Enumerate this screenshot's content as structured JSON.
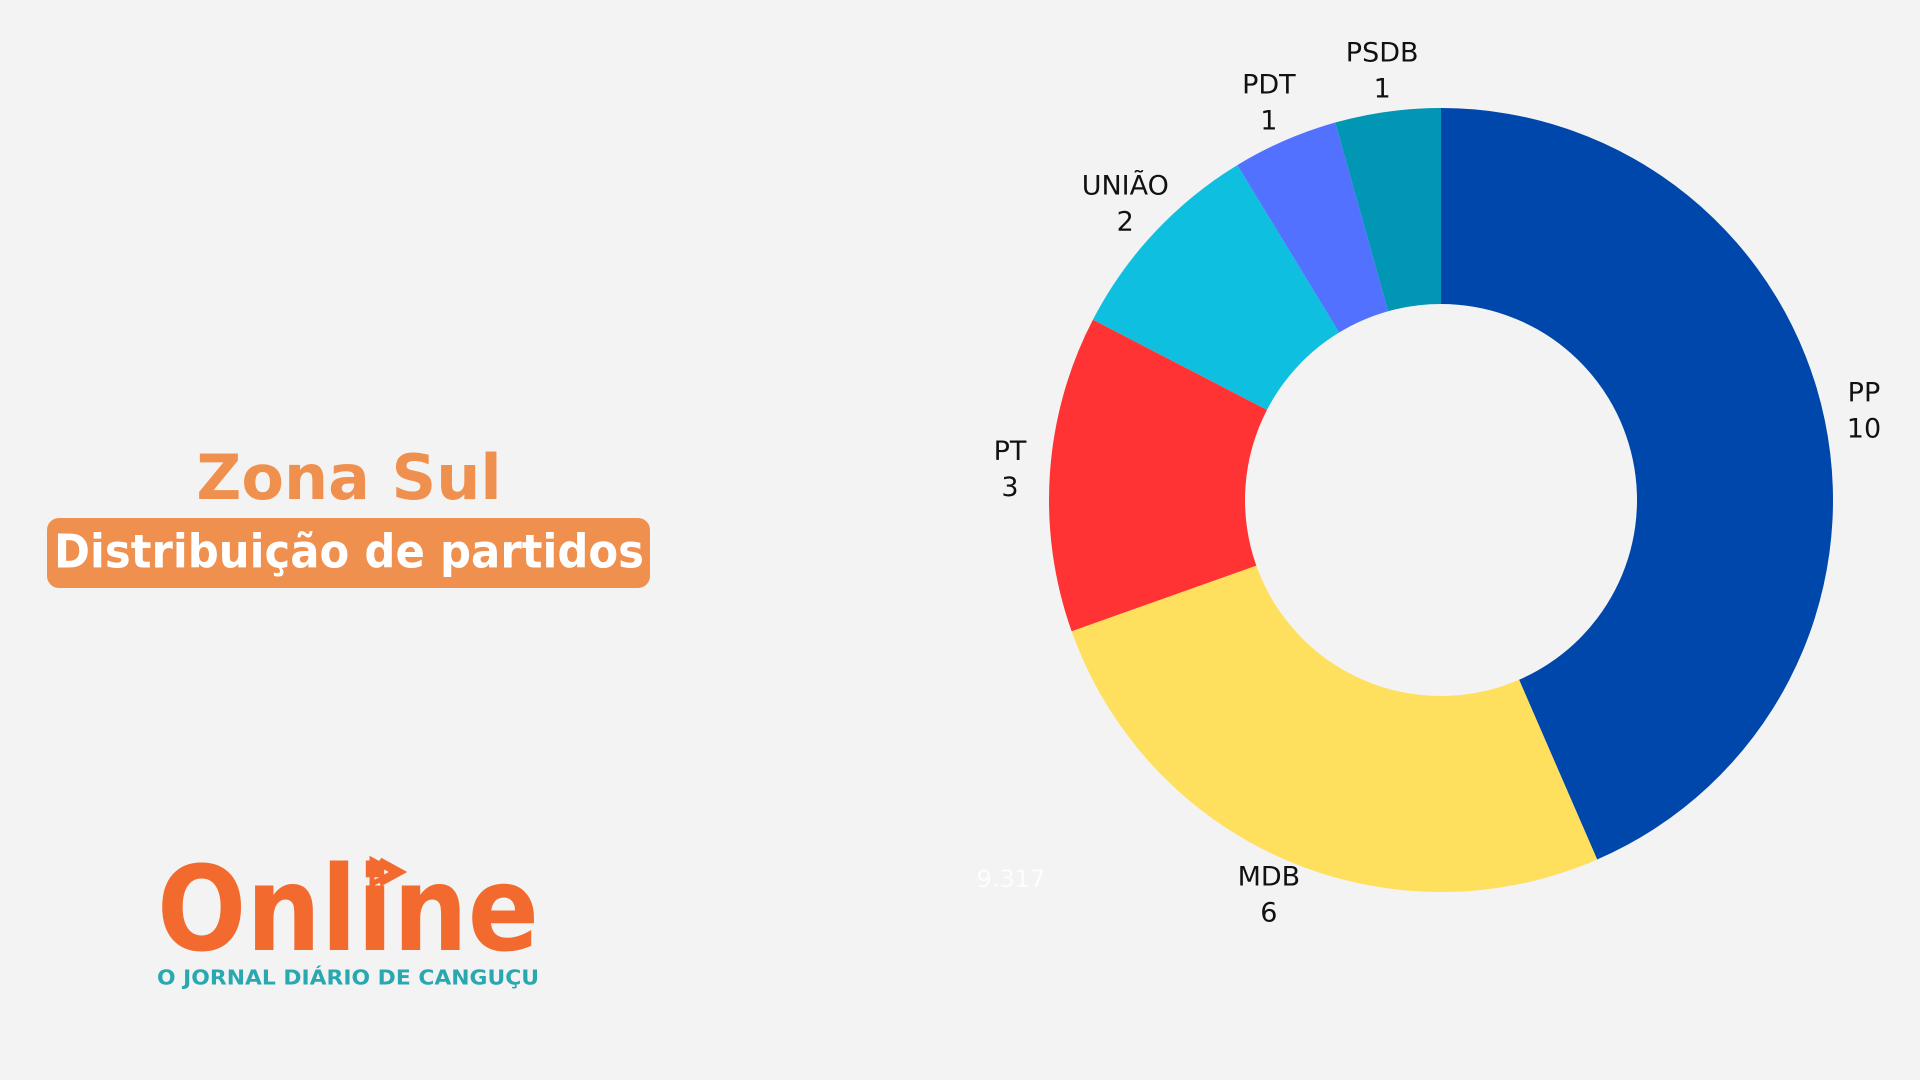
{
  "chart_data": {
    "type": "donut",
    "title": "Zona Sul",
    "subtitle": "Distribuição de partidos",
    "categories": [
      "PP",
      "MDB",
      "PT",
      "UNIÃO",
      "PDT",
      "PSDB"
    ],
    "values": [
      10,
      6,
      3,
      2,
      1,
      1
    ],
    "colors": [
      "#0047ab",
      "#ffdf5e",
      "#ff3333",
      "#0fbfdf",
      "#5271ff",
      "#0096b4"
    ],
    "annotation": "9.317"
  },
  "logo": {
    "name": "Online",
    "tagline": "O JORNAL DIÁRIO DE CANGUÇU"
  }
}
